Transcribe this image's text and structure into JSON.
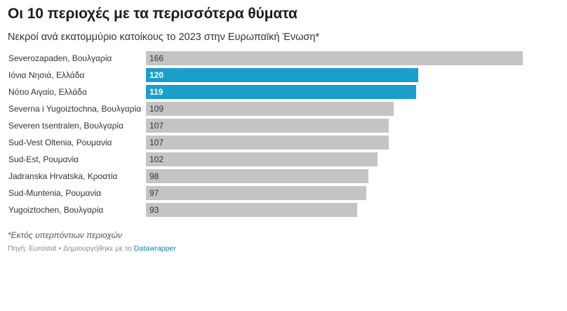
{
  "title": "Οι 10 περιοχές με τα περισσότερα θύματα",
  "subtitle": "Νεκροί ανά εκατομμύριο κατοίκους το 2023 στην Ευρωπαϊκή Ένωση*",
  "footnote": "*Εκτός υπερπόντιων περιοχών",
  "source": {
    "prefix": "Πηγή: Eurostat • Δημιουργήθηκε με το",
    "link_text": "Datawrapper"
  },
  "colors": {
    "default_bar": "#c4c4c4",
    "highlight_bar": "#1a9fcd",
    "default_value_text": "#333333",
    "highlight_value_text": "#ffffff"
  },
  "chart_data": {
    "type": "bar",
    "orientation": "horizontal",
    "title": "Οι 10 περιοχές με τα περισσότερα θύματα",
    "subtitle": "Νεκροί ανά εκατομμύριο κατοίκους το 2023 στην Ευρωπαϊκή Ένωση*",
    "xlim": [
      0,
      166
    ],
    "categories": [
      "Severozapaden, Βουλγαρία",
      "Ιόνια Νησιά, Ελλάδα",
      "Νότιο Αιγαίο, Ελλάδα",
      "Severna i Yugoiztochna, Βουλγαρία",
      "Severen tsentralen, Βουλγαρία",
      "Sud-Vest Oltenia, Ρουμανία",
      "Sud-Est, Ρουμανία",
      "Jadranska Hrvatska, Κροατία",
      "Sud-Muntenia, Ρουμανία",
      "Yugoiztochen, Βουλγαρία"
    ],
    "values": [
      166,
      120,
      119,
      109,
      107,
      107,
      102,
      98,
      97,
      93
    ],
    "highlighted": [
      false,
      true,
      true,
      false,
      false,
      false,
      false,
      false,
      false,
      false
    ]
  }
}
